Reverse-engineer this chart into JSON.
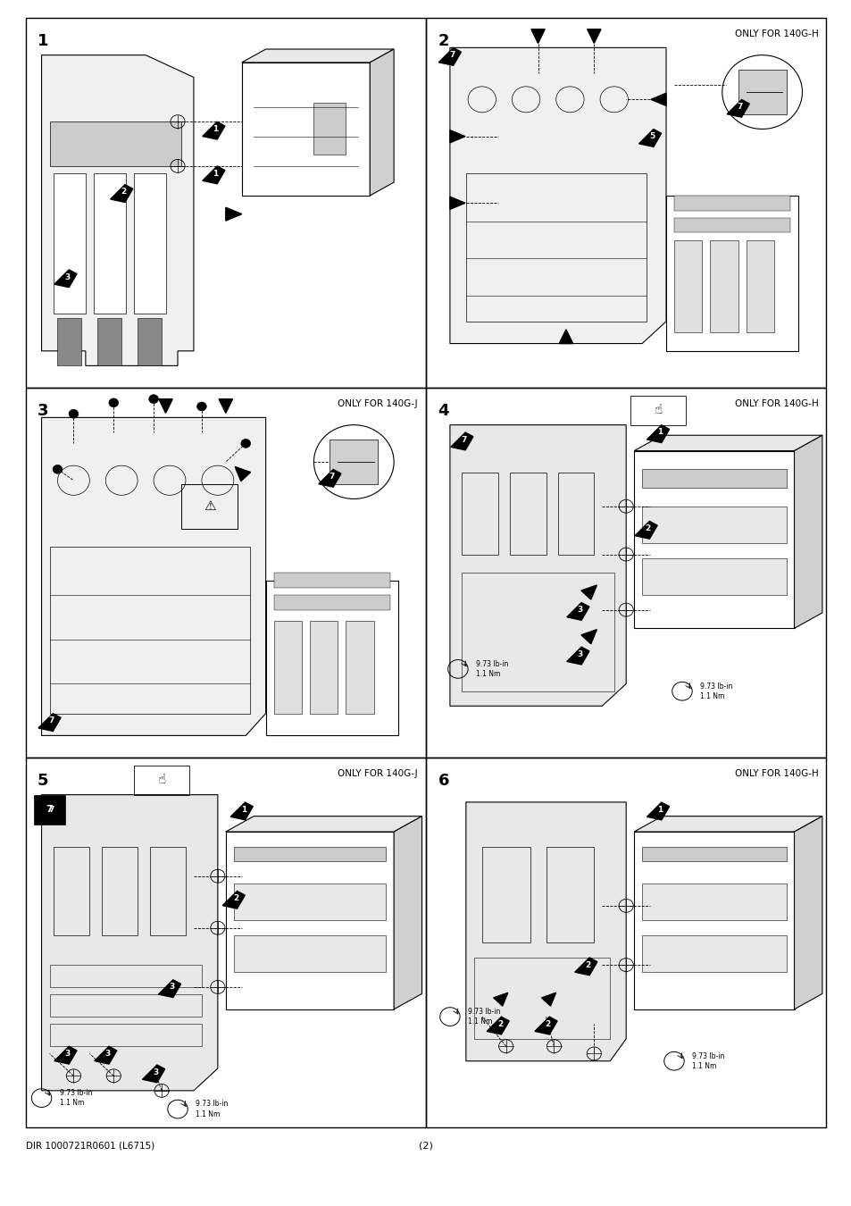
{
  "background_color": "#ffffff",
  "border_color": "#000000",
  "page_width": 9.54,
  "page_height": 13.5,
  "panel_labels": [
    "1",
    "2",
    "3",
    "4",
    "5",
    "6"
  ],
  "panel_subtitles": [
    "",
    "ONLY FOR 140G-H",
    "ONLY FOR 140G-J",
    "ONLY FOR 140G-H",
    "ONLY FOR 140G-J",
    "ONLY FOR 140G-H"
  ],
  "footer_left": "DIR 1000721R0601 (L6715)",
  "footer_center": "(2)"
}
